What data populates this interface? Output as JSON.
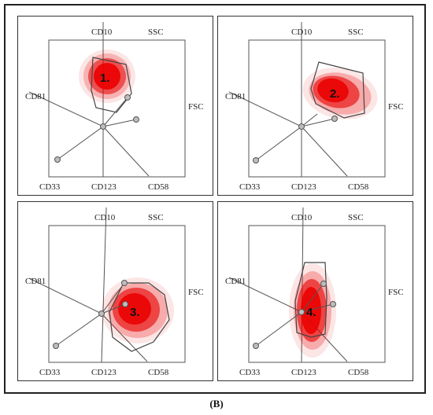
{
  "figure": {
    "caption": "(B)",
    "axis_labels": {
      "top": "CD10",
      "top_right": "SSC",
      "left": "CD81",
      "right": "FSC",
      "bottom_left": "CD33",
      "bottom_center": "CD123",
      "bottom_right": "CD58"
    },
    "colors": {
      "population": "#e00000",
      "lines": "#555555",
      "node_fill": "#bdbdbd"
    },
    "panels": [
      {
        "id": "panel-1",
        "population_label": "1."
      },
      {
        "id": "panel-2",
        "population_label": "2."
      },
      {
        "id": "panel-3",
        "population_label": "3."
      },
      {
        "id": "panel-4",
        "population_label": "4."
      }
    ]
  }
}
